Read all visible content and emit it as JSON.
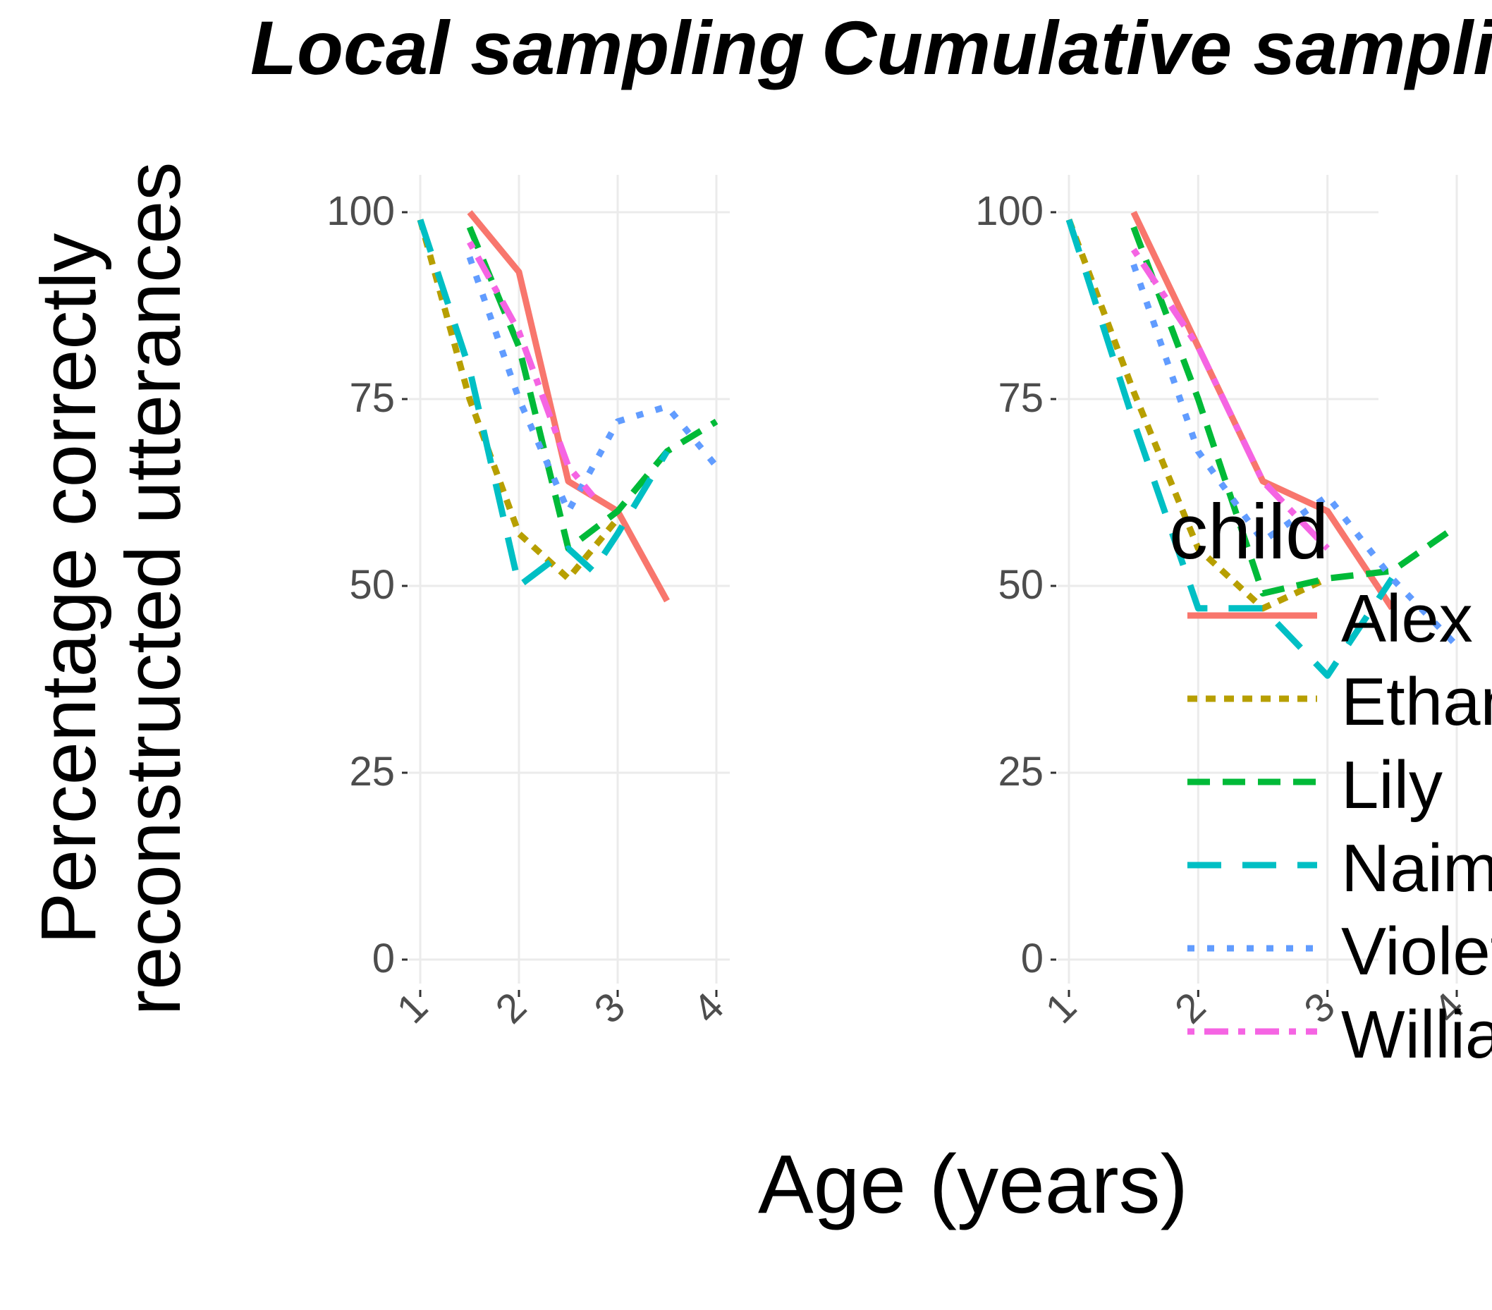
{
  "chart_data": {
    "type": "line",
    "xlabel": "Age (years)",
    "ylabel_lines": [
      "Percentage correctly",
      "reconstructed utterances"
    ],
    "legend": {
      "title": "child",
      "placement": "right (overlapping right panel)"
    },
    "grid": true,
    "panels": [
      {
        "title": "Local sampling",
        "xlim": [
          1,
          4
        ],
        "ylim": [
          0,
          100
        ],
        "xticks": [
          "1",
          "2",
          "3",
          "4"
        ],
        "yticks": [
          "0",
          "25",
          "50",
          "75",
          "100"
        ],
        "series": [
          {
            "name": "Alex",
            "color": "#F8766D",
            "dash": "solid",
            "points": [
              [
                1.5,
                100
              ],
              [
                2.0,
                92
              ],
              [
                2.5,
                64
              ],
              [
                3.0,
                60
              ],
              [
                3.5,
                48
              ]
            ]
          },
          {
            "name": "Ethan",
            "color": "#B79F00",
            "dash": "dotted",
            "points": [
              [
                1.0,
                99
              ],
              [
                1.5,
                75
              ],
              [
                2.0,
                57
              ],
              [
                2.5,
                51
              ],
              [
                3.0,
                59
              ]
            ]
          },
          {
            "name": "Lily",
            "color": "#00BA38",
            "dash": "dashed",
            "points": [
              [
                1.5,
                98
              ],
              [
                2.0,
                82
              ],
              [
                2.5,
                55
              ],
              [
                3.0,
                60
              ],
              [
                3.5,
                68
              ],
              [
                4.0,
                72
              ]
            ]
          },
          {
            "name": "Naima",
            "color": "#00BFC4",
            "dash": "longdash",
            "points": [
              [
                1.0,
                99
              ],
              [
                1.5,
                79
              ],
              [
                2.0,
                50
              ],
              [
                2.5,
                55
              ],
              [
                2.75,
                52
              ],
              [
                3.0,
                57
              ],
              [
                3.5,
                68
              ]
            ]
          },
          {
            "name": "Violet",
            "color": "#619CFF",
            "dash": "finedot",
            "points": [
              [
                1.5,
                94
              ],
              [
                2.0,
                75
              ],
              [
                2.5,
                60
              ],
              [
                3.0,
                72
              ],
              [
                3.5,
                74
              ],
              [
                4.0,
                66
              ]
            ]
          },
          {
            "name": "William",
            "color": "#F564E3",
            "dash": "dotdash",
            "points": [
              [
                1.5,
                96
              ],
              [
                2.0,
                84
              ],
              [
                2.5,
                66
              ],
              [
                2.75,
                62
              ]
            ]
          }
        ]
      },
      {
        "title": "Cumulative sampling",
        "xlim": [
          1,
          4
        ],
        "ylim": [
          0,
          100
        ],
        "xticks": [
          "1",
          "2",
          "3",
          "4"
        ],
        "yticks": [
          "0",
          "25",
          "50",
          "75",
          "100"
        ],
        "series": [
          {
            "name": "Alex",
            "color": "#F8766D",
            "dash": "solid",
            "points": [
              [
                1.5,
                100
              ],
              [
                2.0,
                82
              ],
              [
                2.5,
                64
              ],
              [
                3.0,
                60
              ],
              [
                3.5,
                47
              ]
            ]
          },
          {
            "name": "Ethan",
            "color": "#B79F00",
            "dash": "dotted",
            "points": [
              [
                1.0,
                99
              ],
              [
                1.5,
                76
              ],
              [
                2.0,
                55
              ],
              [
                2.5,
                47
              ],
              [
                3.0,
                51
              ]
            ]
          },
          {
            "name": "Lily",
            "color": "#00BA38",
            "dash": "dashed",
            "points": [
              [
                1.5,
                98
              ],
              [
                2.0,
                75
              ],
              [
                2.5,
                49
              ],
              [
                3.0,
                51
              ],
              [
                3.5,
                52
              ],
              [
                4.0,
                58
              ]
            ]
          },
          {
            "name": "Naima",
            "color": "#00BFC4",
            "dash": "longdash",
            "points": [
              [
                1.0,
                99
              ],
              [
                1.5,
                72
              ],
              [
                2.0,
                47
              ],
              [
                2.5,
                47
              ],
              [
                3.0,
                38
              ],
              [
                3.5,
                51
              ]
            ]
          },
          {
            "name": "Violet",
            "color": "#619CFF",
            "dash": "finedot",
            "points": [
              [
                1.5,
                93
              ],
              [
                2.0,
                68
              ],
              [
                2.5,
                56
              ],
              [
                3.0,
                62
              ],
              [
                3.5,
                51
              ],
              [
                4.0,
                42
              ]
            ]
          },
          {
            "name": "William",
            "color": "#F564E3",
            "dash": "dotdash",
            "points": [
              [
                1.5,
                95
              ],
              [
                2.0,
                82
              ],
              [
                2.5,
                64
              ],
              [
                3.0,
                55
              ]
            ]
          }
        ]
      }
    ]
  }
}
